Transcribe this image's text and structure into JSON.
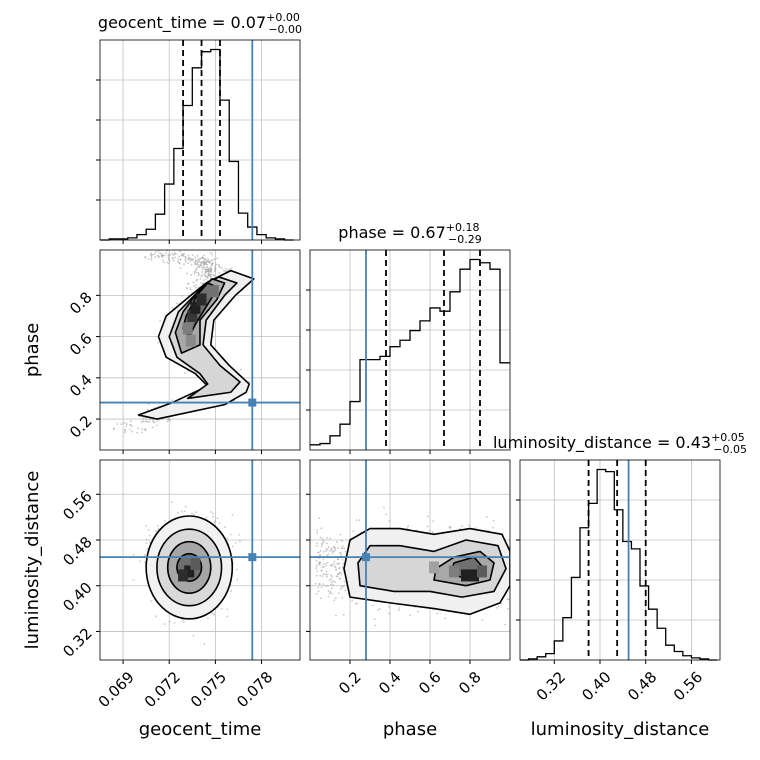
{
  "chart_data": {
    "type": "corner",
    "parameters": [
      "geocent_time",
      "phase",
      "luminosity_distance"
    ],
    "truth": {
      "geocent_time": 0.0774,
      "phase": 0.28,
      "luminosity_distance": 0.45
    },
    "colors": {
      "truth": "#4682b4",
      "hist": "#000000",
      "grid": "#c0c0c0"
    },
    "grid": true,
    "diagonal": [
      {
        "param": "geocent_time",
        "title": "geocent_time = 0.07",
        "title_sup": "+0.00",
        "title_sub": "−0.00",
        "xlim": [
          0.0675,
          0.0805
        ],
        "quantiles": [
          0.0729,
          0.0741,
          0.0753
        ],
        "edges": [
          0.0675,
          0.0681,
          0.0687,
          0.0693,
          0.0699,
          0.0705,
          0.0711,
          0.0717,
          0.0723,
          0.0729,
          0.0735,
          0.0741,
          0.0747,
          0.0753,
          0.0759,
          0.0765,
          0.0771,
          0.0777,
          0.0783,
          0.0789,
          0.0795,
          0.0801
        ],
        "counts": [
          0,
          1,
          1,
          2,
          5,
          10,
          24,
          52,
          85,
          125,
          160,
          175,
          177,
          130,
          73,
          25,
          12,
          5,
          2,
          1,
          0
        ]
      },
      {
        "param": "phase",
        "title": "phase = 0.67",
        "title_sup": "+0.18",
        "title_sub": "−0.29",
        "xlim": [
          0.0,
          1.0
        ],
        "quantiles": [
          0.38,
          0.67,
          0.85
        ],
        "edges": [
          0.0,
          0.05,
          0.1,
          0.15,
          0.2,
          0.25,
          0.3,
          0.35,
          0.4,
          0.45,
          0.5,
          0.55,
          0.6,
          0.65,
          0.7,
          0.75,
          0.8,
          0.85,
          0.9,
          0.95,
          1.0
        ],
        "counts": [
          8,
          10,
          22,
          40,
          75,
          140,
          140,
          145,
          160,
          170,
          185,
          200,
          220,
          215,
          245,
          280,
          295,
          290,
          280,
          135
        ]
      },
      {
        "param": "luminosity_distance",
        "title": "luminosity_distance = 0.43",
        "title_sup": "+0.05",
        "title_sub": "−0.05",
        "xlim": [
          0.26,
          0.61
        ],
        "quantiles": [
          0.38,
          0.43,
          0.48
        ],
        "edges": [
          0.26,
          0.275,
          0.29,
          0.305,
          0.32,
          0.335,
          0.35,
          0.365,
          0.38,
          0.395,
          0.41,
          0.425,
          0.44,
          0.455,
          0.47,
          0.485,
          0.5,
          0.515,
          0.53,
          0.545,
          0.56,
          0.575,
          0.59,
          0.605
        ],
        "counts": [
          0,
          1,
          3,
          6,
          18,
          40,
          78,
          125,
          148,
          180,
          178,
          142,
          112,
          105,
          70,
          48,
          30,
          14,
          8,
          4,
          2,
          1,
          0
        ]
      }
    ],
    "pairs": [
      {
        "x": "geocent_time",
        "y": "phase",
        "xlim": [
          0.0675,
          0.0805
        ],
        "ylim": [
          0.05,
          1.02
        ],
        "yticks": [
          0.2,
          0.4,
          0.6,
          0.8
        ],
        "ridge": [
          [
            0.0694,
            0.15
          ],
          [
            0.0722,
            0.25
          ],
          [
            0.0745,
            0.31
          ],
          [
            0.076,
            0.36
          ],
          [
            0.0748,
            0.43
          ],
          [
            0.0731,
            0.52
          ],
          [
            0.0727,
            0.6
          ],
          [
            0.0731,
            0.7
          ],
          [
            0.0742,
            0.8
          ],
          [
            0.0748,
            0.87
          ],
          [
            0.0748,
            0.92
          ],
          [
            0.074,
            0.97
          ],
          [
            0.0712,
            1.0
          ]
        ],
        "levels": [
          [
            [
              0.0712,
              0.2
            ],
            [
              0.0756,
              0.27
            ],
            [
              0.077,
              0.33
            ],
            [
              0.0772,
              0.37
            ],
            [
              0.0759,
              0.46
            ],
            [
              0.0747,
              0.56
            ],
            [
              0.0749,
              0.68
            ],
            [
              0.0763,
              0.8
            ],
            [
              0.0775,
              0.88
            ],
            [
              0.076,
              0.92
            ],
            [
              0.0744,
              0.86
            ],
            [
              0.0734,
              0.8
            ],
            [
              0.0718,
              0.7
            ],
            [
              0.0713,
              0.6
            ],
            [
              0.0718,
              0.5
            ],
            [
              0.0737,
              0.42
            ],
            [
              0.0745,
              0.36
            ],
            [
              0.0722,
              0.28
            ],
            [
              0.07,
              0.22
            ]
          ],
          [
            [
              0.0732,
              0.3
            ],
            [
              0.076,
              0.33
            ],
            [
              0.0766,
              0.38
            ],
            [
              0.0753,
              0.46
            ],
            [
              0.0742,
              0.56
            ],
            [
              0.0744,
              0.68
            ],
            [
              0.0756,
              0.8
            ],
            [
              0.0764,
              0.86
            ],
            [
              0.0752,
              0.89
            ],
            [
              0.0739,
              0.82
            ],
            [
              0.0726,
              0.72
            ],
            [
              0.072,
              0.6
            ],
            [
              0.0725,
              0.5
            ],
            [
              0.074,
              0.42
            ],
            [
              0.0745,
              0.37
            ]
          ],
          [
            [
              0.0728,
              0.52
            ],
            [
              0.074,
              0.56
            ],
            [
              0.074,
              0.68
            ],
            [
              0.0751,
              0.78
            ],
            [
              0.0756,
              0.86
            ],
            [
              0.0748,
              0.88
            ],
            [
              0.0739,
              0.82
            ],
            [
              0.0729,
              0.72
            ],
            [
              0.0724,
              0.62
            ]
          ],
          [
            [
              0.0733,
              0.6
            ],
            [
              0.0737,
              0.66
            ],
            [
              0.0747,
              0.78
            ],
            [
              0.0751,
              0.84
            ],
            [
              0.0745,
              0.86
            ],
            [
              0.0738,
              0.8
            ],
            [
              0.0731,
              0.7
            ],
            [
              0.0729,
              0.64
            ]
          ]
        ],
        "cells": [
          [
            0.0732,
            0.64,
            0.55
          ],
          [
            0.0735,
            0.7,
            0.85
          ],
          [
            0.0737,
            0.74,
            0.95
          ],
          [
            0.0741,
            0.78,
            0.9
          ],
          [
            0.0749,
            0.82,
            0.6
          ],
          [
            0.0734,
            0.58,
            0.5
          ]
        ]
      },
      {
        "x": "geocent_time",
        "y": "luminosity_distance",
        "xlim": [
          0.0675,
          0.0805
        ],
        "ylim": [
          0.27,
          0.62
        ],
        "yticks": [
          0.32,
          0.4,
          0.48,
          0.56
        ],
        "center": [
          0.0733,
          0.432
        ],
        "radii": [
          [
            0.0028,
            0.09
          ],
          [
            0.0021,
            0.067
          ],
          [
            0.0014,
            0.045
          ],
          [
            0.0008,
            0.024
          ]
        ],
        "cells": [
          [
            0.0733,
            0.425,
            0.95
          ],
          [
            0.0729,
            0.418,
            0.9
          ],
          [
            0.0737,
            0.438,
            0.7
          ]
        ]
      },
      {
        "x": "phase",
        "y": "luminosity_distance",
        "xlim": [
          0.0,
          1.0
        ],
        "ylim": [
          0.27,
          0.62
        ],
        "xticks": [
          0.2,
          0.4,
          0.6,
          0.8
        ],
        "levels": [
          [
            [
              0.2,
              0.38
            ],
            [
              0.4,
              0.37
            ],
            [
              0.62,
              0.36
            ],
            [
              0.8,
              0.35
            ],
            [
              0.95,
              0.37
            ],
            [
              1.0,
              0.4
            ],
            [
              1.0,
              0.46
            ],
            [
              0.96,
              0.49
            ],
            [
              0.8,
              0.5
            ],
            [
              0.62,
              0.49
            ],
            [
              0.45,
              0.5
            ],
            [
              0.3,
              0.5
            ],
            [
              0.2,
              0.48
            ],
            [
              0.17,
              0.43
            ]
          ],
          [
            [
              0.25,
              0.4
            ],
            [
              0.42,
              0.39
            ],
            [
              0.6,
              0.39
            ],
            [
              0.76,
              0.38
            ],
            [
              0.92,
              0.39
            ],
            [
              0.98,
              0.43
            ],
            [
              0.94,
              0.47
            ],
            [
              0.78,
              0.48
            ],
            [
              0.62,
              0.46
            ],
            [
              0.45,
              0.47
            ],
            [
              0.3,
              0.47
            ],
            [
              0.24,
              0.44
            ]
          ],
          [
            [
              0.62,
              0.41
            ],
            [
              0.78,
              0.4
            ],
            [
              0.9,
              0.41
            ],
            [
              0.92,
              0.44
            ],
            [
              0.85,
              0.46
            ],
            [
              0.72,
              0.45
            ],
            [
              0.63,
              0.43
            ]
          ],
          [
            [
              0.7,
              0.42
            ],
            [
              0.82,
              0.41
            ],
            [
              0.87,
              0.43
            ],
            [
              0.82,
              0.45
            ],
            [
              0.72,
              0.44
            ]
          ]
        ],
        "cells": [
          [
            0.78,
            0.418,
            0.95
          ],
          [
            0.82,
            0.418,
            0.95
          ],
          [
            0.86,
            0.425,
            0.7
          ],
          [
            0.72,
            0.425,
            0.55
          ],
          [
            0.62,
            0.432,
            0.4
          ]
        ]
      }
    ],
    "xticks": {
      "geocent_time": [
        "0.069",
        "0.072",
        "0.075",
        "0.078"
      ],
      "phase": [
        "0.2",
        "0.4",
        "0.6",
        "0.8"
      ],
      "luminosity_distance": [
        "0.32",
        "0.40",
        "0.48",
        "0.56"
      ]
    },
    "yticks": {
      "phase": [
        "0.2",
        "0.4",
        "0.6",
        "0.8"
      ],
      "luminosity_distance": [
        "0.32",
        "0.40",
        "0.48",
        "0.56"
      ]
    },
    "xlabels": [
      "geocent_time",
      "phase",
      "luminosity_distance"
    ],
    "ylabels": [
      "phase",
      "luminosity_distance"
    ]
  }
}
